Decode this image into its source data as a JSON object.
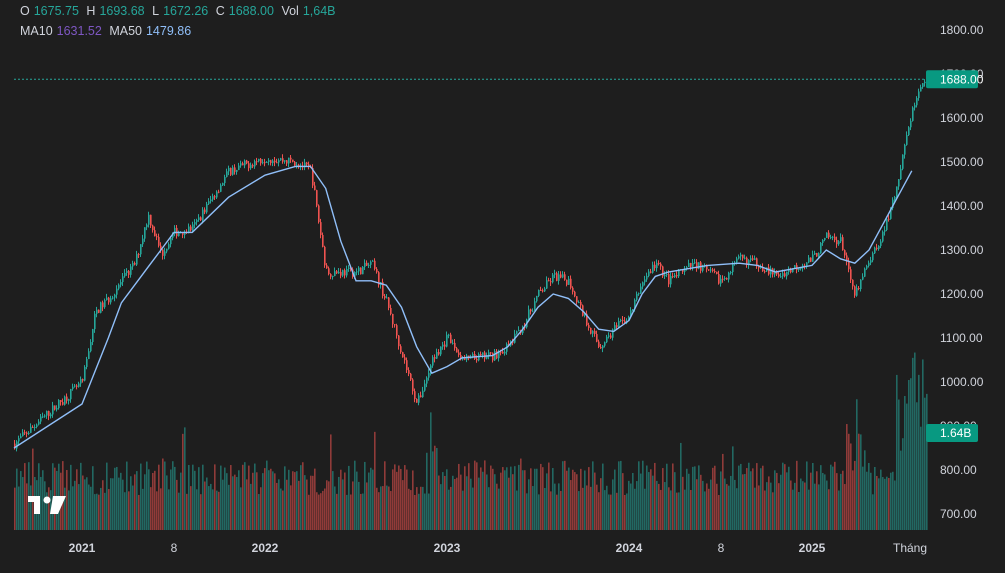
{
  "legend": {
    "o_label": "O",
    "o_value": "1675.75",
    "h_label": "H",
    "h_value": "1693.68",
    "l_label": "L",
    "l_value": "1672.26",
    "c_label": "C",
    "c_value": "1688.00",
    "vol_label": "Vol",
    "vol_value": "1,64B",
    "ma10_label": "MA10",
    "ma10_value": "1631.52",
    "ma50_label": "MA50",
    "ma50_value": "1479.86"
  },
  "colors": {
    "background": "#1e1e1e",
    "up": "#26a69a",
    "down": "#ef5350",
    "ma50": "#90bff9",
    "price_tag": "#089981",
    "axis_text": "#d1d4dc",
    "last_price_line": "#26a69a"
  },
  "chart_data": {
    "type": "candlestick",
    "title": "",
    "xlabel": "",
    "ylabel": "",
    "grid": false,
    "ylim": [
      670,
      1830
    ],
    "y_ticks": [
      "1800.00",
      "1700.00",
      "1600.00",
      "1500.00",
      "1400.00",
      "1300.00",
      "1200.00",
      "1100.00",
      "1000.00",
      "900.00",
      "800.00",
      "700.00"
    ],
    "x_ticks": [
      "2021",
      "8",
      "2022",
      "2023",
      "2024",
      "8",
      "2025",
      "Tháng"
    ],
    "last_price": "1688.00",
    "last_volume": "1.64B",
    "series": [
      {
        "kind": "close_path",
        "points": [
          [
            "2020-11",
            860
          ],
          [
            "2021-01",
            1000
          ],
          [
            "2021-02",
            1160
          ],
          [
            "2021-03",
            1190
          ],
          [
            "2021-05",
            1270
          ],
          [
            "2021-06",
            1380
          ],
          [
            "2021-07",
            1290
          ],
          [
            "2021-08",
            1340
          ],
          [
            "2021-09",
            1350
          ],
          [
            "2021-11",
            1480
          ],
          [
            "2022-01",
            1510
          ],
          [
            "2022-03",
            1500
          ],
          [
            "2022-04",
            1480
          ],
          [
            "2022-05",
            1250
          ],
          [
            "2022-07",
            1250
          ],
          [
            "2022-08",
            1270
          ],
          [
            "2022-09",
            1180
          ],
          [
            "2022-11",
            950
          ],
          [
            "2022-12",
            1050
          ],
          [
            "2023-01",
            1100
          ],
          [
            "2023-02",
            1050
          ],
          [
            "2023-04",
            1060
          ],
          [
            "2023-05",
            1080
          ],
          [
            "2023-06",
            1130
          ],
          [
            "2023-07",
            1200
          ],
          [
            "2023-08",
            1240
          ],
          [
            "2023-09",
            1230
          ],
          [
            "2023-10",
            1150
          ],
          [
            "2023-11",
            1080
          ],
          [
            "2023-12",
            1120
          ],
          [
            "2024-01",
            1150
          ],
          [
            "2024-02",
            1230
          ],
          [
            "2024-03",
            1270
          ],
          [
            "2024-04",
            1230
          ],
          [
            "2024-05",
            1250
          ],
          [
            "2024-06",
            1270
          ],
          [
            "2024-08",
            1230
          ],
          [
            "2024-09",
            1280
          ],
          [
            "2024-10",
            1270
          ],
          [
            "2024-11",
            1240
          ],
          [
            "2025-01",
            1280
          ],
          [
            "2025-02",
            1330
          ],
          [
            "2025-03",
            1320
          ],
          [
            "2025-04",
            1200
          ],
          [
            "2025-05",
            1280
          ],
          [
            "2025-06",
            1340
          ],
          [
            "2025-07",
            1460
          ],
          [
            "2025-08",
            1620
          ],
          [
            "2025-09",
            1688
          ]
        ]
      },
      {
        "name": "MA50",
        "points": [
          [
            "2020-11",
            850
          ],
          [
            "2021-01",
            950
          ],
          [
            "2021-03",
            1100
          ],
          [
            "2021-04",
            1180
          ],
          [
            "2021-06",
            1260
          ],
          [
            "2021-07",
            1300
          ],
          [
            "2021-08",
            1340
          ],
          [
            "2021-09",
            1340
          ],
          [
            "2021-11",
            1420
          ],
          [
            "2022-01",
            1470
          ],
          [
            "2022-03",
            1490
          ],
          [
            "2022-04",
            1490
          ],
          [
            "2022-05",
            1440
          ],
          [
            "2022-06",
            1320
          ],
          [
            "2022-07",
            1230
          ],
          [
            "2022-08",
            1230
          ],
          [
            "2022-09",
            1220
          ],
          [
            "2022-10",
            1170
          ],
          [
            "2022-11",
            1080
          ],
          [
            "2022-12",
            1020
          ],
          [
            "2023-01",
            1035
          ],
          [
            "2023-02",
            1055
          ],
          [
            "2023-04",
            1060
          ],
          [
            "2023-05",
            1080
          ],
          [
            "2023-06",
            1120
          ],
          [
            "2023-07",
            1170
          ],
          [
            "2023-08",
            1200
          ],
          [
            "2023-09",
            1190
          ],
          [
            "2023-10",
            1160
          ],
          [
            "2023-11",
            1120
          ],
          [
            "2023-12",
            1115
          ],
          [
            "2024-01",
            1140
          ],
          [
            "2024-02",
            1200
          ],
          [
            "2024-03",
            1240
          ],
          [
            "2024-04",
            1250
          ],
          [
            "2024-06",
            1260
          ],
          [
            "2024-07",
            1265
          ],
          [
            "2024-09",
            1270
          ],
          [
            "2024-10",
            1265
          ],
          [
            "2024-11",
            1250
          ],
          [
            "2025-01",
            1265
          ],
          [
            "2025-02",
            1300
          ],
          [
            "2025-03",
            1280
          ],
          [
            "2025-04",
            1270
          ],
          [
            "2025-05",
            1300
          ],
          [
            "2025-06",
            1360
          ],
          [
            "2025-07",
            1420
          ],
          [
            "2025-08",
            1480
          ]
        ]
      }
    ]
  }
}
